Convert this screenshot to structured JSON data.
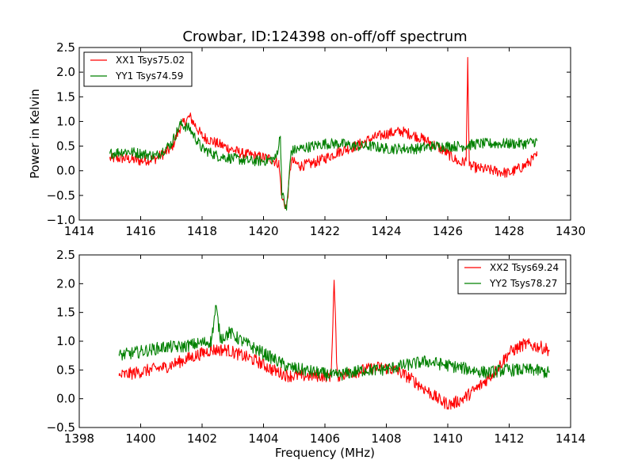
{
  "chart_data": [
    {
      "type": "line",
      "title": "Crowbar, ID:124398 on-off/off spectrum",
      "xlabel": "",
      "ylabel": "Power in Kelvin",
      "xlim": [
        1414,
        1430
      ],
      "ylim": [
        -1.0,
        2.5
      ],
      "xticks": [
        "1414",
        "1416",
        "1418",
        "1420",
        "1422",
        "1424",
        "1426",
        "1428",
        "1430"
      ],
      "yticks": [
        "−1.0",
        "−0.5",
        "0.0",
        "0.5",
        "1.0",
        "1.5",
        "2.0",
        "2.5"
      ],
      "legend": "top-left",
      "series": [
        {
          "name": "XX1 Tsys75.02",
          "color": "#ff0000",
          "x": [
            1415.0,
            1415.5,
            1416.0,
            1416.5,
            1417.0,
            1417.3,
            1417.6,
            1418.0,
            1418.5,
            1418.9,
            1419.3,
            1419.7,
            1420.2,
            1420.5,
            1420.6,
            1420.75,
            1420.9,
            1421.2,
            1421.6,
            1422.0,
            1422.5,
            1423.0,
            1423.5,
            1424.0,
            1424.5,
            1425.0,
            1425.5,
            1426.0,
            1426.4,
            1426.6,
            1426.65,
            1426.7,
            1427.0,
            1427.5,
            1428.0,
            1428.5,
            1428.9
          ],
          "y": [
            0.25,
            0.25,
            0.2,
            0.25,
            0.45,
            0.9,
            1.1,
            0.7,
            0.55,
            0.45,
            0.35,
            0.3,
            0.25,
            0.15,
            -0.55,
            -0.75,
            0.2,
            0.1,
            0.15,
            0.25,
            0.4,
            0.5,
            0.65,
            0.75,
            0.8,
            0.7,
            0.55,
            0.35,
            0.15,
            0.2,
            2.3,
            0.1,
            0.05,
            0.0,
            -0.05,
            0.1,
            0.3
          ]
        },
        {
          "name": "YY1 Tsys74.59",
          "color": "#008000",
          "x": [
            1415.0,
            1415.5,
            1416.0,
            1416.5,
            1417.0,
            1417.3,
            1417.6,
            1418.0,
            1418.5,
            1419.0,
            1419.5,
            1420.0,
            1420.4,
            1420.55,
            1420.6,
            1420.75,
            1420.9,
            1421.2,
            1421.6,
            1422.0,
            1422.5,
            1423.0,
            1423.5,
            1424.0,
            1424.5,
            1425.0,
            1425.5,
            1426.0,
            1426.5,
            1427.0,
            1427.5,
            1428.0,
            1428.5,
            1428.9
          ],
          "y": [
            0.35,
            0.4,
            0.35,
            0.3,
            0.55,
            0.95,
            0.85,
            0.45,
            0.3,
            0.25,
            0.2,
            0.2,
            0.25,
            0.7,
            -0.45,
            -0.8,
            0.4,
            0.45,
            0.5,
            0.55,
            0.55,
            0.5,
            0.5,
            0.45,
            0.45,
            0.45,
            0.5,
            0.5,
            0.5,
            0.55,
            0.55,
            0.55,
            0.55,
            0.6
          ]
        }
      ]
    },
    {
      "type": "line",
      "title": "",
      "xlabel": "Frequency (MHz)",
      "ylabel": "",
      "xlim": [
        1398,
        1414
      ],
      "ylim": [
        -0.5,
        2.5
      ],
      "xticks": [
        "1398",
        "1400",
        "1402",
        "1404",
        "1406",
        "1408",
        "1410",
        "1412",
        "1414"
      ],
      "yticks": [
        "−0.5",
        "0.0",
        "0.5",
        "1.0",
        "1.5",
        "2.0",
        "2.5"
      ],
      "legend": "top-right",
      "series": [
        {
          "name": "XX2 Tsys69.24",
          "color": "#ff0000",
          "x": [
            1399.3,
            1399.8,
            1400.3,
            1400.8,
            1401.3,
            1401.8,
            1402.3,
            1402.8,
            1403.3,
            1403.8,
            1404.3,
            1404.8,
            1405.3,
            1405.8,
            1406.2,
            1406.3,
            1406.4,
            1406.8,
            1407.3,
            1407.8,
            1408.3,
            1408.8,
            1409.3,
            1409.8,
            1410.1,
            1410.5,
            1411.0,
            1411.5,
            1412.0,
            1412.5,
            1413.0,
            1413.3
          ],
          "y": [
            0.4,
            0.45,
            0.5,
            0.55,
            0.65,
            0.75,
            0.85,
            0.85,
            0.75,
            0.65,
            0.5,
            0.4,
            0.4,
            0.4,
            0.4,
            2.05,
            0.4,
            0.45,
            0.5,
            0.55,
            0.5,
            0.35,
            0.15,
            -0.05,
            -0.1,
            0.0,
            0.2,
            0.45,
            0.8,
            0.95,
            0.9,
            0.85
          ]
        },
        {
          "name": "YY2 Tsys78.27",
          "color": "#008000",
          "x": [
            1399.3,
            1399.8,
            1400.3,
            1400.8,
            1401.3,
            1401.8,
            1402.3,
            1402.45,
            1402.6,
            1402.9,
            1403.3,
            1403.8,
            1404.3,
            1404.8,
            1405.3,
            1405.8,
            1406.3,
            1406.8,
            1407.3,
            1407.8,
            1408.3,
            1408.8,
            1409.3,
            1409.8,
            1410.3,
            1410.8,
            1411.3,
            1411.8,
            1412.3,
            1412.8,
            1413.3
          ],
          "y": [
            0.75,
            0.8,
            0.85,
            0.9,
            0.9,
            0.95,
            1.0,
            1.6,
            1.05,
            1.15,
            1.0,
            0.85,
            0.7,
            0.55,
            0.5,
            0.45,
            0.4,
            0.45,
            0.5,
            0.5,
            0.55,
            0.6,
            0.65,
            0.6,
            0.55,
            0.5,
            0.45,
            0.5,
            0.5,
            0.5,
            0.45
          ]
        }
      ]
    }
  ]
}
